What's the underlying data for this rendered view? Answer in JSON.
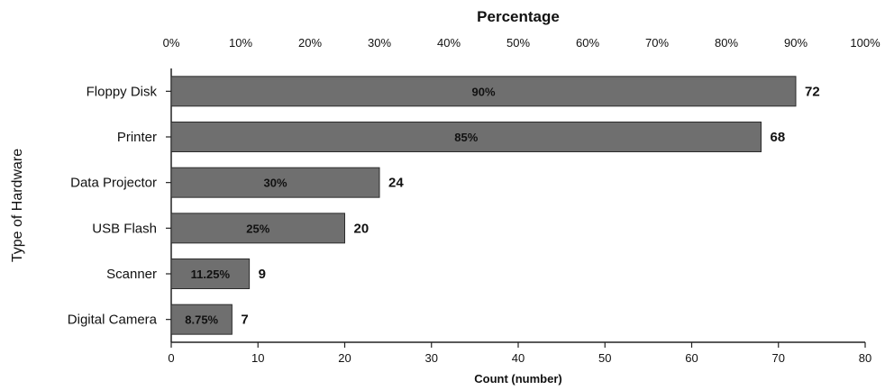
{
  "chart_data": {
    "type": "bar",
    "orientation": "horizontal",
    "title": "Percentage",
    "xlabel": "Count (number)",
    "ylabel": "Type of Hardware",
    "categories": [
      "Floppy Disk",
      "Printer",
      "Data Projector",
      "USB Flash",
      "Scanner",
      "Digital Camera"
    ],
    "values": [
      72,
      68,
      24,
      20,
      9,
      7
    ],
    "percent_labels": [
      "90%",
      "85%",
      "30%",
      "25%",
      "11.25%",
      "8.75%"
    ],
    "count_labels": [
      "72",
      "68",
      "24",
      "20",
      "9",
      "7"
    ],
    "xlim": [
      0,
      80
    ],
    "x_ticks": [
      0,
      10,
      20,
      30,
      40,
      50,
      60,
      70,
      80
    ],
    "x_tick_labels": [
      "0",
      "10",
      "20",
      "30",
      "40",
      "50",
      "60",
      "70",
      "80"
    ],
    "top_ticks": [
      0,
      10,
      20,
      30,
      40,
      50,
      60,
      70,
      80,
      90,
      100
    ],
    "top_tick_labels": [
      "0%",
      "10%",
      "20%",
      "30%",
      "40%",
      "50%",
      "60%",
      "70%",
      "80%",
      "90%",
      "100%"
    ],
    "top_axis_range": [
      0,
      100
    ],
    "grid": false,
    "bar_color": "#6f6f6f"
  }
}
